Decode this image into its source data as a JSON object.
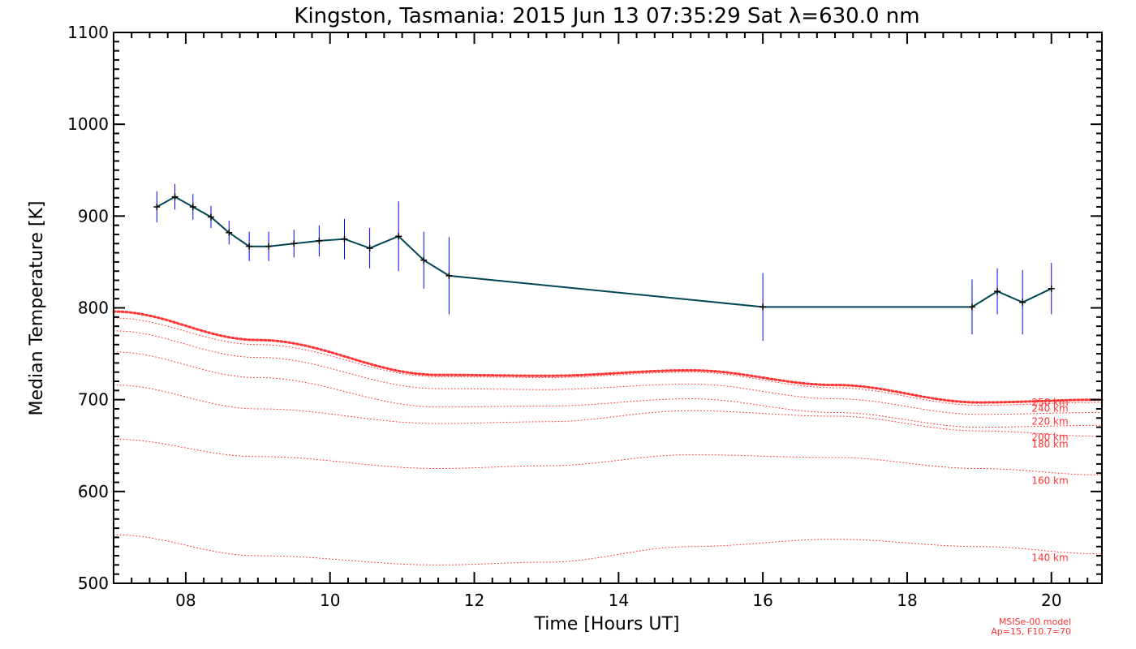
{
  "chart_data": {
    "type": "line",
    "title": "Kingston, Tasmania: 2015 Jun 13 07:35:29 Sat λ=630.0 nm",
    "xlabel": "Time [Hours UT]",
    "ylabel": "Median Temperature [K]",
    "xlim": [
      7.0,
      20.7
    ],
    "ylim": [
      500,
      1100
    ],
    "xticks": [
      8,
      10,
      12,
      14,
      16,
      18,
      20
    ],
    "xtick_labels": [
      "08",
      "10",
      "12",
      "14",
      "16",
      "18",
      "20"
    ],
    "yticks": [
      500,
      600,
      700,
      800,
      900,
      1000,
      1100
    ],
    "ytick_labels": [
      "500",
      "600",
      "700",
      "800",
      "900",
      "1000",
      "1100"
    ],
    "grid": false,
    "measured": {
      "color": "#004455",
      "errorbar_color": "#0000ff",
      "x": [
        7.6,
        7.85,
        8.1,
        8.35,
        8.6,
        8.88,
        9.15,
        9.5,
        9.85,
        10.2,
        10.55,
        10.95,
        11.3,
        11.65,
        16.0,
        18.9,
        19.25,
        19.6,
        20.0
      ],
      "y": [
        910,
        921,
        910,
        899,
        882,
        867,
        867,
        870,
        873,
        875,
        865,
        878,
        852,
        835,
        801,
        801,
        818,
        806,
        821
      ],
      "err": [
        17,
        14,
        14,
        12,
        13,
        16,
        16,
        15,
        17,
        22,
        22,
        38,
        31,
        42,
        37,
        30,
        25,
        35,
        28
      ]
    },
    "model_series": [
      {
        "name": "250 km",
        "x": [
          7.0,
          9.0,
          11.5,
          13.0,
          15.0,
          17.0,
          19.0,
          20.7
        ],
        "y": [
          796,
          765,
          727,
          726,
          732,
          716,
          697,
          700
        ]
      },
      {
        "name": "240 km",
        "x": [
          7.0,
          9.0,
          11.5,
          13.0,
          15.0,
          17.0,
          19.0,
          20.7
        ],
        "y": [
          789,
          760,
          725,
          724,
          730,
          713,
          694,
          697
        ]
      },
      {
        "name": "220 km",
        "x": [
          7.0,
          9.0,
          11.5,
          13.0,
          15.0,
          17.0,
          19.0,
          20.7
        ],
        "y": [
          775,
          746,
          712,
          711,
          717,
          701,
          684,
          686
        ]
      },
      {
        "name": "200 km",
        "x": [
          7.0,
          9.0,
          11.5,
          13.0,
          15.0,
          17.0,
          19.0,
          20.7
        ],
        "y": [
          752,
          724,
          692,
          693,
          701,
          686,
          670,
          672
        ]
      },
      {
        "name": "180 km",
        "x": [
          7.0,
          9.0,
          11.5,
          13.0,
          15.0,
          17.0,
          19.0,
          20.7
        ],
        "y": [
          716,
          690,
          674,
          676,
          688,
          682,
          666,
          660
        ]
      },
      {
        "name": "160 km",
        "x": [
          7.0,
          9.0,
          11.5,
          13.0,
          15.0,
          17.0,
          19.0,
          20.7
        ],
        "y": [
          657,
          638,
          625,
          628,
          640,
          637,
          625,
          618
        ]
      },
      {
        "name": "140 km",
        "x": [
          7.0,
          9.0,
          11.5,
          13.0,
          15.0,
          17.0,
          19.0,
          20.7
        ],
        "y": [
          553,
          530,
          520,
          523,
          540,
          548,
          540,
          532
        ]
      }
    ],
    "model_color": "#ff3333",
    "model_note_line1": "MSISe-00 model",
    "model_note_line2": "Ap=15, F10.7=70"
  }
}
